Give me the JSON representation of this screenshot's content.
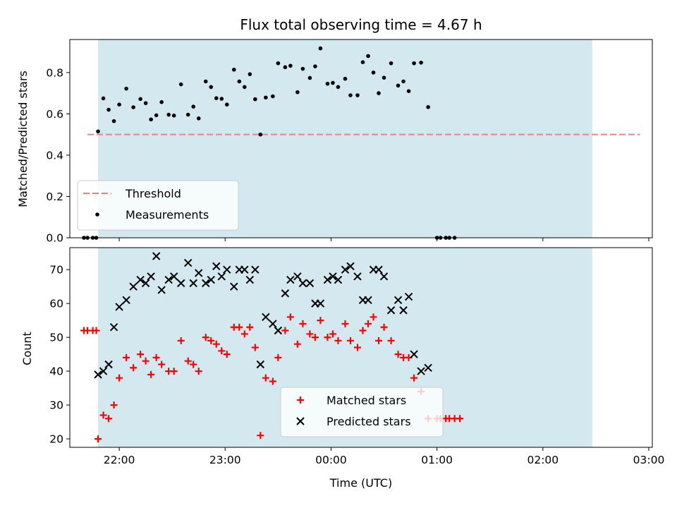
{
  "chart_data": {
    "type": "scatter",
    "title": "Flux total observing time = 4.67 h",
    "xlabel": "Time (UTC)",
    "x_ticks": [
      "22:00",
      "23:00",
      "00:00",
      "01:00",
      "02:00",
      "03:00"
    ],
    "x_range": [
      "21:32",
      "03:02"
    ],
    "observing_window": [
      "21:48",
      "02:28"
    ],
    "window_color": "#d3e9ef",
    "panels": [
      {
        "ylabel": "Matched/Predicted stars",
        "ylim": [
          0,
          0.96
        ],
        "yticks": [
          0.0,
          0.2,
          0.4,
          0.6,
          0.8
        ],
        "threshold": {
          "name": "Threshold",
          "y": 0.5,
          "x_start": "21:42",
          "x_end": "02:55",
          "color": "#f08080"
        },
        "legend_position": "lower-left",
        "series": [
          {
            "name": "Measurements",
            "marker": "dot",
            "color": "#000000",
            "points": [
              [
                "21:40",
                0.0
              ],
              [
                "21:42",
                0.0
              ],
              [
                "21:45",
                0.0
              ],
              [
                "21:47",
                0.0
              ],
              [
                "21:48",
                0.515
              ],
              [
                "21:51",
                0.675
              ],
              [
                "21:54",
                0.62
              ],
              [
                "21:57",
                0.565
              ],
              [
                "22:00",
                0.645
              ],
              [
                "22:04",
                0.722
              ],
              [
                "22:08",
                0.632
              ],
              [
                "22:12",
                0.672
              ],
              [
                "22:15",
                0.652
              ],
              [
                "22:18",
                0.573
              ],
              [
                "22:21",
                0.593
              ],
              [
                "22:24",
                0.657
              ],
              [
                "22:28",
                0.596
              ],
              [
                "22:31",
                0.592
              ],
              [
                "22:35",
                0.743
              ],
              [
                "22:39",
                0.596
              ],
              [
                "22:42",
                0.635
              ],
              [
                "22:45",
                0.578
              ],
              [
                "22:49",
                0.757
              ],
              [
                "22:52",
                0.73
              ],
              [
                "22:55",
                0.676
              ],
              [
                "22:58",
                0.673
              ],
              [
                "23:01",
                0.645
              ],
              [
                "23:05",
                0.814
              ],
              [
                "23:08",
                0.757
              ],
              [
                "23:11",
                0.73
              ],
              [
                "23:14",
                0.792
              ],
              [
                "23:17",
                0.671
              ],
              [
                "23:20",
                0.5
              ],
              [
                "23:23",
                0.679
              ],
              [
                "23:27",
                0.685
              ],
              [
                "23:30",
                0.845
              ],
              [
                "23:34",
                0.826
              ],
              [
                "23:37",
                0.833
              ],
              [
                "23:41",
                0.705
              ],
              [
                "23:44",
                0.818
              ],
              [
                "23:48",
                0.774
              ],
              [
                "23:51",
                0.83
              ],
              [
                "23:54",
                0.917
              ],
              [
                "23:58",
                0.746
              ],
              [
                "00:01",
                0.75
              ],
              [
                "00:04",
                0.73
              ],
              [
                "00:08",
                0.77
              ],
              [
                "00:11",
                0.69
              ],
              [
                "00:15",
                0.69
              ],
              [
                "00:18",
                0.85
              ],
              [
                "00:21",
                0.88
              ],
              [
                "00:24",
                0.8
              ],
              [
                "00:27",
                0.7
              ],
              [
                "00:30",
                0.775
              ],
              [
                "00:34",
                0.845
              ],
              [
                "00:38",
                0.737
              ],
              [
                "00:41",
                0.757
              ],
              [
                "00:44",
                0.71
              ],
              [
                "00:47",
                0.845
              ],
              [
                "00:51",
                0.848
              ],
              [
                "00:55",
                0.633
              ],
              [
                "01:00",
                0.0
              ],
              [
                "01:02",
                0.0
              ],
              [
                "01:05",
                0.0
              ],
              [
                "01:07",
                0.0
              ],
              [
                "01:10",
                0.0
              ]
            ]
          }
        ]
      },
      {
        "ylabel": "Count",
        "ylim": [
          17.5,
          76.5
        ],
        "yticks": [
          20,
          30,
          40,
          50,
          60,
          70
        ],
        "legend_position": "lower-center",
        "series": [
          {
            "name": "Matched stars",
            "marker": "plus",
            "color": "#ff0000",
            "points": [
              [
                "21:40",
                52
              ],
              [
                "21:42",
                52
              ],
              [
                "21:45",
                52
              ],
              [
                "21:47",
                52
              ],
              [
                "21:48",
                20
              ],
              [
                "21:51",
                27
              ],
              [
                "21:54",
                26
              ],
              [
                "21:57",
                30
              ],
              [
                "22:00",
                38
              ],
              [
                "22:04",
                44
              ],
              [
                "22:08",
                41
              ],
              [
                "22:12",
                45
              ],
              [
                "22:15",
                43
              ],
              [
                "22:18",
                39
              ],
              [
                "22:21",
                44
              ],
              [
                "22:24",
                42
              ],
              [
                "22:28",
                40
              ],
              [
                "22:31",
                40
              ],
              [
                "22:35",
                49
              ],
              [
                "22:39",
                43
              ],
              [
                "22:42",
                42
              ],
              [
                "22:45",
                40
              ],
              [
                "22:49",
                50
              ],
              [
                "22:52",
                49
              ],
              [
                "22:55",
                48
              ],
              [
                "22:58",
                46
              ],
              [
                "23:01",
                45
              ],
              [
                "23:05",
                53
              ],
              [
                "23:08",
                53
              ],
              [
                "23:11",
                51
              ],
              [
                "23:14",
                53
              ],
              [
                "23:17",
                47
              ],
              [
                "23:20",
                21
              ],
              [
                "23:23",
                38
              ],
              [
                "23:27",
                37
              ],
              [
                "23:30",
                44
              ],
              [
                "23:34",
                52
              ],
              [
                "23:37",
                56
              ],
              [
                "23:41",
                48
              ],
              [
                "23:44",
                54
              ],
              [
                "23:48",
                51
              ],
              [
                "23:51",
                50
              ],
              [
                "23:54",
                55
              ],
              [
                "23:58",
                50
              ],
              [
                "00:01",
                51
              ],
              [
                "00:04",
                49
              ],
              [
                "00:08",
                54
              ],
              [
                "00:11",
                49
              ],
              [
                "00:15",
                47
              ],
              [
                "00:18",
                52
              ],
              [
                "00:21",
                54
              ],
              [
                "00:24",
                56
              ],
              [
                "00:27",
                49
              ],
              [
                "00:30",
                53
              ],
              [
                "00:34",
                49
              ],
              [
                "00:38",
                45
              ],
              [
                "00:41",
                44
              ],
              [
                "00:44",
                44
              ],
              [
                "00:47",
                38
              ],
              [
                "00:51",
                34
              ],
              [
                "00:55",
                26
              ],
              [
                "01:00",
                26
              ],
              [
                "01:02",
                26
              ],
              [
                "01:05",
                26
              ],
              [
                "01:07",
                26
              ],
              [
                "01:10",
                26
              ],
              [
                "01:13",
                26
              ]
            ]
          },
          {
            "name": "Predicted stars",
            "marker": "x",
            "color": "#000000",
            "points": [
              [
                "21:48",
                39
              ],
              [
                "21:51",
                40
              ],
              [
                "21:54",
                42
              ],
              [
                "21:57",
                53
              ],
              [
                "22:00",
                59
              ],
              [
                "22:04",
                61
              ],
              [
                "22:08",
                65
              ],
              [
                "22:12",
                67
              ],
              [
                "22:15",
                66
              ],
              [
                "22:18",
                68
              ],
              [
                "22:21",
                74
              ],
              [
                "22:24",
                64
              ],
              [
                "22:28",
                67
              ],
              [
                "22:31",
                68
              ],
              [
                "22:35",
                66
              ],
              [
                "22:39",
                72
              ],
              [
                "22:42",
                66
              ],
              [
                "22:45",
                69
              ],
              [
                "22:49",
                66
              ],
              [
                "22:52",
                67
              ],
              [
                "22:55",
                71
              ],
              [
                "22:58",
                68
              ],
              [
                "23:01",
                70
              ],
              [
                "23:05",
                65
              ],
              [
                "23:08",
                70
              ],
              [
                "23:11",
                70
              ],
              [
                "23:14",
                67
              ],
              [
                "23:17",
                70
              ],
              [
                "23:20",
                42
              ],
              [
                "23:23",
                56
              ],
              [
                "23:27",
                54
              ],
              [
                "23:30",
                52
              ],
              [
                "23:34",
                63
              ],
              [
                "23:37",
                67
              ],
              [
                "23:41",
                68
              ],
              [
                "23:44",
                66
              ],
              [
                "23:48",
                66
              ],
              [
                "23:51",
                60
              ],
              [
                "23:54",
                60
              ],
              [
                "23:58",
                67
              ],
              [
                "00:01",
                68
              ],
              [
                "00:04",
                67
              ],
              [
                "00:08",
                70
              ],
              [
                "00:11",
                71
              ],
              [
                "00:15",
                68
              ],
              [
                "00:18",
                61
              ],
              [
                "00:21",
                61
              ],
              [
                "00:24",
                70
              ],
              [
                "00:27",
                70
              ],
              [
                "00:30",
                68
              ],
              [
                "00:34",
                58
              ],
              [
                "00:38",
                61
              ],
              [
                "00:41",
                58
              ],
              [
                "00:44",
                62
              ],
              [
                "00:47",
                45
              ],
              [
                "00:51",
                40
              ],
              [
                "00:55",
                41
              ]
            ]
          }
        ]
      }
    ]
  }
}
